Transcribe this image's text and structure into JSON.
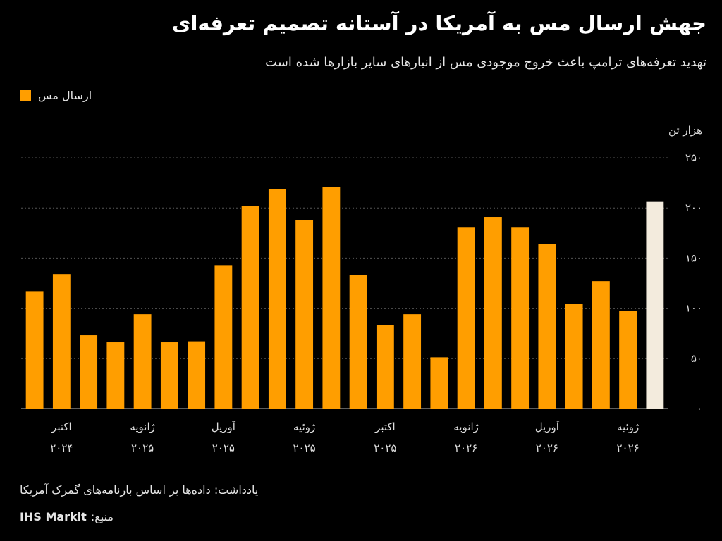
{
  "header": {
    "title": "جهش ارسال مس به آمریکا در آستانه تصمیم تعرفه‌ای",
    "subtitle": "تهدید تعرفه‌های ترامپ باعث خروج موجودی مس از انبارهای سایر بازارها شده است"
  },
  "legend": {
    "label": "ارسال مس"
  },
  "axis": {
    "unit": "هزار تن"
  },
  "footer": {
    "note": "یادداشت: داده‌ها بر اساس بارنامه‌های گمرک آمریکا",
    "source_label": "منبع:",
    "source_name": "IHS Markit"
  },
  "colors": {
    "bar": "#FF9E00",
    "highlight_bar": "#F3EBDD",
    "grid": "#555555",
    "axis_text": "#dddddd"
  },
  "chart_data": {
    "type": "bar",
    "series": [
      {
        "name": "ارسال مس",
        "values": [
          117,
          134,
          73,
          66,
          94,
          66,
          67,
          143,
          202,
          219,
          188,
          221,
          133,
          83,
          94,
          51,
          181,
          191,
          181,
          164,
          104,
          127,
          97,
          206
        ]
      }
    ],
    "highlight_index": 23,
    "ylim": [
      0,
      250
    ],
    "yticks": [
      0,
      50,
      100,
      150,
      200,
      250
    ],
    "ytick_labels": [
      "۰",
      "۵۰",
      "۱۰۰",
      "۱۵۰",
      "۲۰۰",
      "۲۵۰"
    ],
    "xtick_labels": [
      {
        "index": 1,
        "month": "اکتبر",
        "year": "۲۰۲۴"
      },
      {
        "index": 4,
        "month": "ژانویه",
        "year": "۲۰۲۵"
      },
      {
        "index": 7,
        "month": "آوریل",
        "year": "۲۰۲۵"
      },
      {
        "index": 10,
        "month": "ژوئیه",
        "year": "۲۰۲۵"
      },
      {
        "index": 13,
        "month": "اکتبر",
        "year": "۲۰۲۵"
      },
      {
        "index": 16,
        "month": "ژانویه",
        "year": "۲۰۲۶"
      },
      {
        "index": 19,
        "month": "آوریل",
        "year": "۲۰۲۶"
      },
      {
        "index": 22,
        "month": "ژوئیه",
        "year": "۲۰۲۶"
      }
    ],
    "grid": true,
    "legend_position": "top-left"
  }
}
